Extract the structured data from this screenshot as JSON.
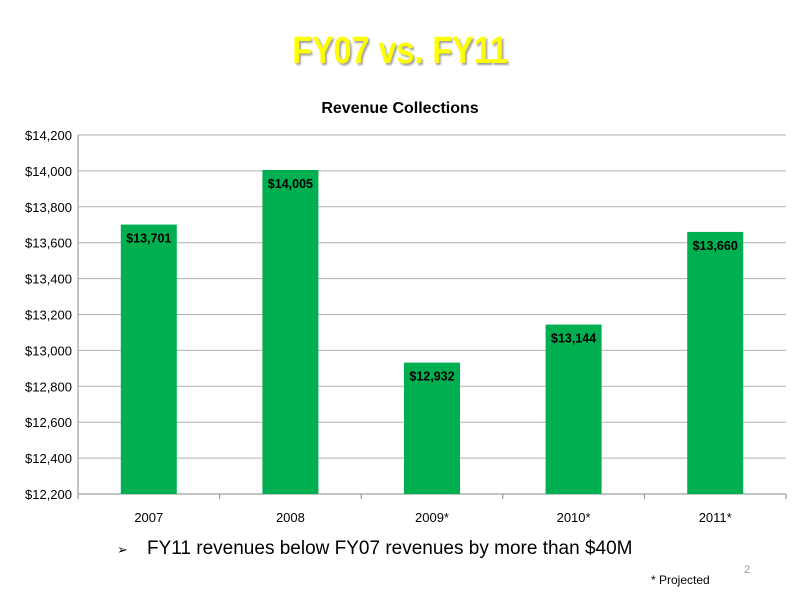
{
  "slide": {
    "title": "FY07 vs. FY11",
    "bullet_marker": "➢",
    "bullet": "FY11 revenues below FY07 revenues by more than $40M",
    "footnote": "* Projected",
    "page_number": "2"
  },
  "chart_data": {
    "type": "bar",
    "title": "Revenue Collections",
    "categories": [
      "2007",
      "2008",
      "2009*",
      "2010*",
      "2011*"
    ],
    "values": [
      13701,
      14005,
      12932,
      13144,
      13660
    ],
    "data_labels": [
      "$13,701",
      "$14,005",
      "$12,932",
      "$13,144",
      "$13,660"
    ],
    "ylim": [
      12200,
      14200
    ],
    "yticks": [
      12200,
      12400,
      12600,
      12800,
      13000,
      13200,
      13400,
      13600,
      13800,
      14000,
      14200
    ],
    "ytick_labels": [
      "$12,200",
      "$12,400",
      "$12,600",
      "$12,800",
      "$13,000",
      "$13,200",
      "$13,400",
      "$13,600",
      "$13,800",
      "$14,000",
      "$14,200"
    ],
    "xlabel": "",
    "ylabel": "",
    "grid": true,
    "legend": "none",
    "bar_color": "#00b050",
    "title_color": "#ffff00"
  }
}
